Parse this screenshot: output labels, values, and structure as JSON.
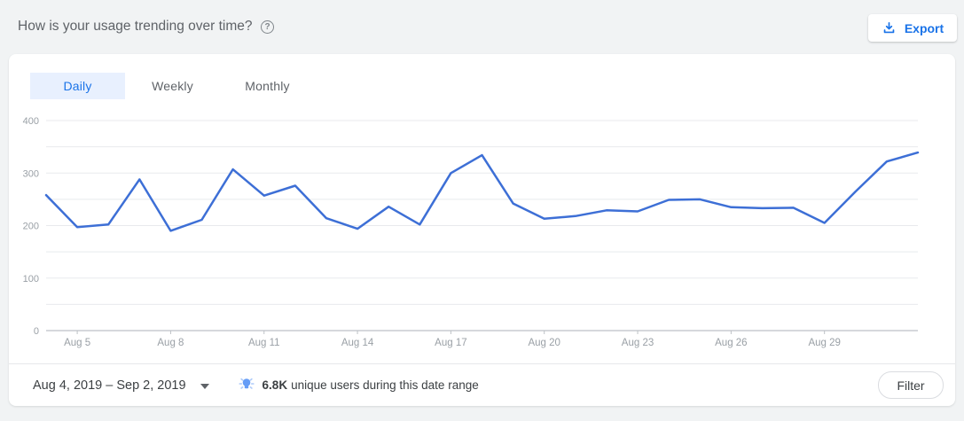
{
  "header": {
    "title": "How is your usage trending over time?",
    "help_glyph": "?",
    "export_label": "Export"
  },
  "tabs": [
    {
      "label": "Daily",
      "active": true
    },
    {
      "label": "Weekly",
      "active": false
    },
    {
      "label": "Monthly",
      "active": false
    }
  ],
  "footer": {
    "date_range": "Aug 4, 2019 – Sep 2, 2019",
    "insight_value": "6.8K",
    "insight_text": "unique users during this date range",
    "filter_label": "Filter"
  },
  "colors": {
    "accent_blue": "#1a73e8",
    "tab_active_bg": "#e8f0fe",
    "line_blue": "#3d6fd6",
    "gridline": "#e8eaed",
    "axis_line": "#bdc1c6",
    "tick_label": "#9aa0a6",
    "lightbulb_blue": "#669df6"
  },
  "chart_data": {
    "type": "line",
    "title": "Daily usage (unique users per day)",
    "x": [
      "Aug 4",
      "Aug 5",
      "Aug 6",
      "Aug 7",
      "Aug 8",
      "Aug 9",
      "Aug 10",
      "Aug 11",
      "Aug 12",
      "Aug 13",
      "Aug 14",
      "Aug 15",
      "Aug 16",
      "Aug 17",
      "Aug 18",
      "Aug 19",
      "Aug 20",
      "Aug 21",
      "Aug 22",
      "Aug 23",
      "Aug 24",
      "Aug 25",
      "Aug 26",
      "Aug 27",
      "Aug 28",
      "Aug 29",
      "Aug 30",
      "Aug 31",
      "Sep 1"
    ],
    "values": [
      258,
      197,
      202,
      288,
      190,
      211,
      307,
      257,
      276,
      214,
      194,
      236,
      202,
      300,
      334,
      242,
      213,
      218,
      229,
      227,
      249,
      250,
      235,
      233,
      234,
      205,
      265,
      322,
      339
    ],
    "x_tick_labels": [
      "Aug 5",
      "Aug 8",
      "Aug 11",
      "Aug 14",
      "Aug 17",
      "Aug 20",
      "Aug 23",
      "Aug 26",
      "Aug 29"
    ],
    "y_ticks": [
      0,
      100,
      200,
      300,
      400
    ],
    "ylim": [
      0,
      400
    ],
    "grid_step": 50,
    "xlabel": "",
    "ylabel": "",
    "legend": "none",
    "grid": "on"
  }
}
